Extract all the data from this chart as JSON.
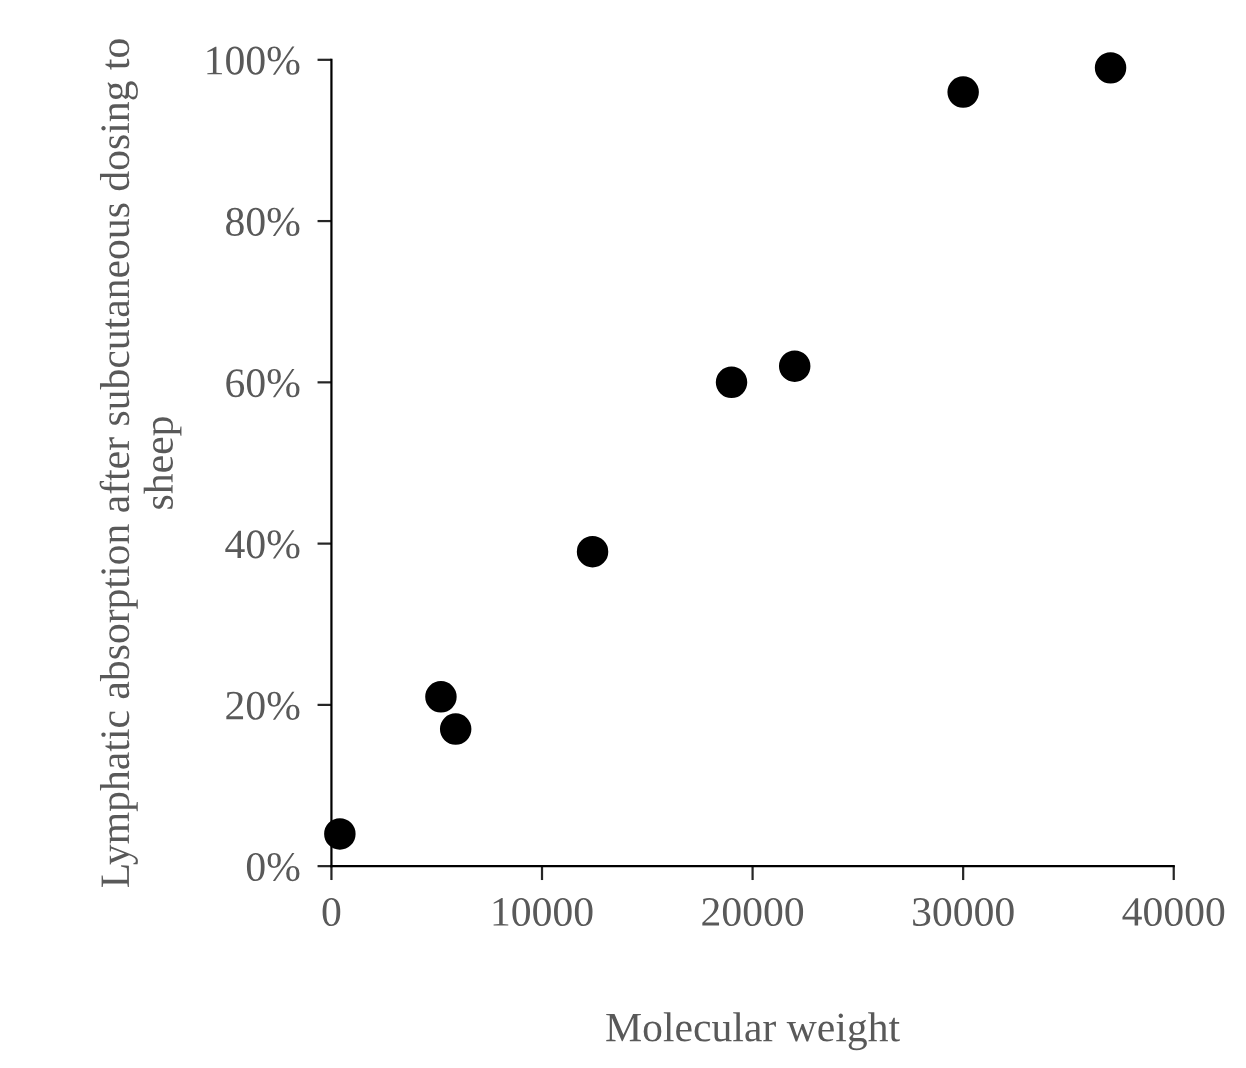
{
  "chart_data": {
    "type": "scatter",
    "xlabel": "Molecular weight",
    "ylabel": "Lymphatic absorption after subcutaneous dosing to sheep",
    "x": [
      400,
      5200,
      5900,
      12400,
      19000,
      22000,
      30000,
      37000
    ],
    "series": [
      {
        "color": "#000000",
        "values": [
          4,
          21,
          17,
          39,
          60,
          62,
          96,
          99
        ]
      }
    ],
    "xlim": [
      0,
      40000
    ],
    "xticks": [
      0,
      10000,
      20000,
      30000,
      40000
    ],
    "ylim": [
      0,
      100
    ],
    "yticks": [
      {
        "value": 0,
        "label": "0%"
      },
      {
        "value": 20,
        "label": "20%"
      },
      {
        "value": 40,
        "label": "40%"
      },
      {
        "value": 60,
        "label": "60%"
      },
      {
        "value": 80,
        "label": "80%"
      },
      {
        "value": 100,
        "label": "100%"
      }
    ],
    "grid": false,
    "legend": false,
    "marker": "circle"
  }
}
